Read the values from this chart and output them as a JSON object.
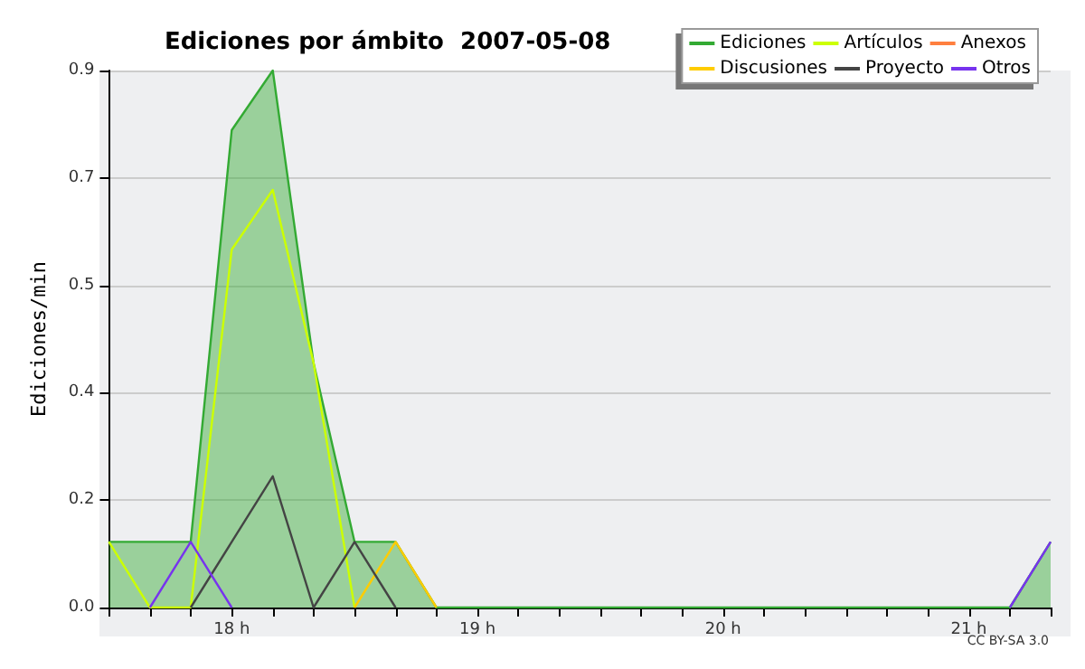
{
  "chart_data": {
    "type": "line",
    "title": "Ediciones por ámbito  2007-05-08",
    "ylabel": "Ediciones/min",
    "x": [
      17.5,
      17.667,
      17.833,
      18,
      18.167,
      18.333,
      18.5,
      18.667,
      18.833,
      21.167,
      21.333
    ],
    "series": [
      {
        "name": "Ediciones",
        "type": "area",
        "color": "#33aa33",
        "values": [
          0.11,
          0.11,
          0.11,
          0.8,
          0.9,
          0.41,
          0.11,
          0.11,
          0,
          0,
          0.11
        ]
      },
      {
        "name": "Artículos",
        "color": "#ccff00",
        "values": [
          0.11,
          0,
          0,
          0.6,
          0.7,
          0.41,
          0,
          null,
          null,
          null,
          null
        ]
      },
      {
        "name": "Anexos",
        "color": "#ff7f3f",
        "values": [
          null,
          null,
          null,
          null,
          null,
          null,
          null,
          null,
          null,
          null,
          null
        ]
      },
      {
        "name": "Discusiones",
        "color": "#ffcc00",
        "values": [
          null,
          null,
          null,
          null,
          null,
          null,
          0,
          0.11,
          0,
          null,
          null
        ]
      },
      {
        "name": "Proyecto",
        "color": "#444444",
        "values": [
          null,
          null,
          0,
          0.11,
          0.22,
          0,
          0.11,
          0,
          null,
          null,
          null
        ]
      },
      {
        "name": "Otros",
        "color": "#7733ee",
        "values": [
          null,
          0,
          0.11,
          0,
          null,
          null,
          null,
          null,
          null,
          0,
          0.11
        ]
      }
    ],
    "xlim": [
      17.5,
      21.333
    ],
    "xticks": [
      {
        "value": 17.5,
        "label": null
      },
      {
        "value": 17.667,
        "label": null
      },
      {
        "value": 17.833,
        "label": null
      },
      {
        "value": 18,
        "label": "18 h"
      },
      {
        "value": 18.167,
        "label": null
      },
      {
        "value": 18.333,
        "label": null
      },
      {
        "value": 18.5,
        "label": null
      },
      {
        "value": 18.667,
        "label": null
      },
      {
        "value": 18.833,
        "label": null
      },
      {
        "value": 19,
        "label": "19 h"
      },
      {
        "value": 19.167,
        "label": null
      },
      {
        "value": 19.333,
        "label": null
      },
      {
        "value": 19.5,
        "label": null
      },
      {
        "value": 19.667,
        "label": null
      },
      {
        "value": 19.833,
        "label": null
      },
      {
        "value": 20,
        "label": "20 h"
      },
      {
        "value": 20.167,
        "label": null
      },
      {
        "value": 20.333,
        "label": null
      },
      {
        "value": 20.5,
        "label": null
      },
      {
        "value": 20.667,
        "label": null
      },
      {
        "value": 20.833,
        "label": null
      },
      {
        "value": 21,
        "label": "21 h"
      },
      {
        "value": 21.167,
        "label": null
      },
      {
        "value": 21.333,
        "label": null
      }
    ],
    "ylim": [
      0,
      0.9
    ],
    "yticks": [
      {
        "value": 0,
        "label": "0.0"
      },
      {
        "value": 0.18,
        "label": "0.2"
      },
      {
        "value": 0.36,
        "label": "0.4"
      },
      {
        "value": 0.54,
        "label": "0.5"
      },
      {
        "value": 0.72,
        "label": "0.7"
      },
      {
        "value": 0.9,
        "label": "0.9"
      }
    ],
    "grid": "y",
    "legend": "top right",
    "marker": "none",
    "line_style": "solid",
    "annotations": [
      "CC BY-SA 3.0"
    ]
  }
}
